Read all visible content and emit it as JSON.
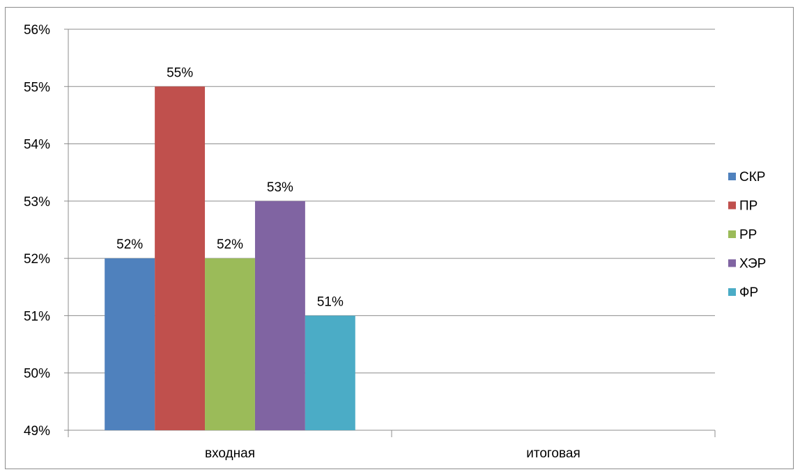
{
  "chart_data": {
    "type": "bar",
    "title": "",
    "xlabel": "",
    "ylabel": "",
    "categories": [
      "входная",
      "итоговая"
    ],
    "series": [
      {
        "name": "СКР",
        "color": "#4f81bd",
        "values": [
          0.52,
          null
        ],
        "labels": [
          "52%",
          ""
        ]
      },
      {
        "name": "ПР",
        "color": "#c0504d",
        "values": [
          0.55,
          null
        ],
        "labels": [
          "55%",
          ""
        ]
      },
      {
        "name": "РР",
        "color": "#9bbb59",
        "values": [
          0.52,
          null
        ],
        "labels": [
          "52%",
          ""
        ]
      },
      {
        "name": "ХЭР",
        "color": "#8064a2",
        "values": [
          0.53,
          null
        ],
        "labels": [
          "53%",
          ""
        ]
      },
      {
        "name": "ФР",
        "color": "#4bacc6",
        "values": [
          0.51,
          null
        ],
        "labels": [
          "51%",
          ""
        ]
      }
    ],
    "ylim": [
      0.49,
      0.56
    ],
    "yticks": [
      0.49,
      0.5,
      0.51,
      0.52,
      0.53,
      0.54,
      0.55,
      0.56
    ],
    "ytick_labels": [
      "49%",
      "50%",
      "51%",
      "52%",
      "53%",
      "54%",
      "55%",
      "56%"
    ],
    "grid": true,
    "legend_position": "right"
  }
}
